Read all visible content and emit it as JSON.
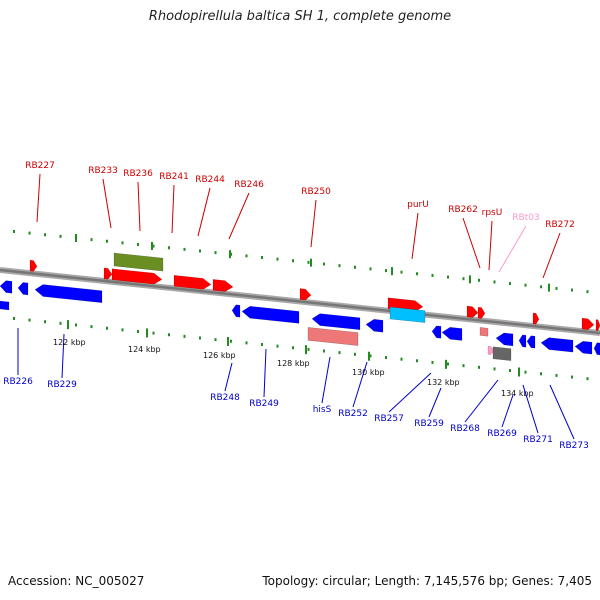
{
  "title": "Rhodopirellula baltica SH 1, complete genome",
  "footer": {
    "accession": "Accession: NC_005027",
    "topology": "Topology: circular; Length: 7,145,576 bp; Genes: 7,405"
  },
  "colors": {
    "forward": "#ff0000",
    "reverse": "#0000ff",
    "trna": "#ff99cc",
    "rrna_pink": "#ee7777",
    "olive": "#6b8e23",
    "cyan": "#00bfff",
    "grey": "#666666",
    "backbone": "#888888",
    "tick": "#228b22"
  },
  "scale_labels": [
    "122 kbp",
    "124 kbp",
    "126 kbp",
    "128 kbp",
    "130 kbp",
    "132 kbp",
    "134 kbp"
  ],
  "gene_labels_top": [
    {
      "text": "RB227",
      "color": "#cc0000"
    },
    {
      "text": "RB233",
      "color": "#cc0000"
    },
    {
      "text": "RB236",
      "color": "#cc0000"
    },
    {
      "text": "RB241",
      "color": "#cc0000"
    },
    {
      "text": "RB244",
      "color": "#cc0000"
    },
    {
      "text": "RB246",
      "color": "#cc0000"
    },
    {
      "text": "RB250",
      "color": "#cc0000"
    },
    {
      "text": "purU",
      "color": "#cc0000"
    },
    {
      "text": "RB262",
      "color": "#cc0000"
    },
    {
      "text": "rpsU",
      "color": "#cc0000"
    },
    {
      "text": "RBt03",
      "color": "#ff99cc"
    },
    {
      "text": "RB272",
      "color": "#cc0000"
    }
  ],
  "gene_labels_bottom": [
    {
      "text": "RB226"
    },
    {
      "text": "RB229"
    },
    {
      "text": "RB248"
    },
    {
      "text": "RB249"
    },
    {
      "text": "hisS"
    },
    {
      "text": "RB252"
    },
    {
      "text": "RB257"
    },
    {
      "text": "RB259"
    },
    {
      "text": "RB268"
    },
    {
      "text": "RB269"
    },
    {
      "text": "RB271"
    },
    {
      "text": "RB273"
    }
  ]
}
